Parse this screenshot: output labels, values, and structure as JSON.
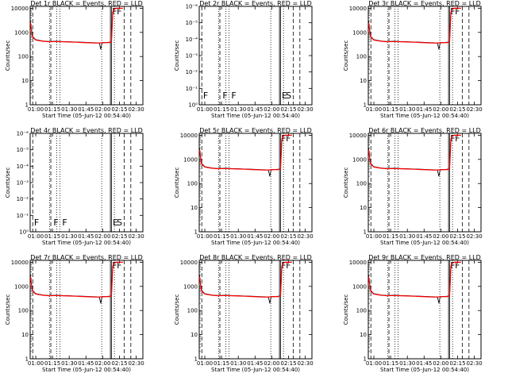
{
  "time_ticks": [
    "01:00",
    "01:15",
    "01:30",
    "01:45",
    "02:00",
    "02:15",
    "02:30"
  ],
  "tick_hours": [
    1.0,
    1.25,
    1.5,
    1.75,
    2.0,
    2.25,
    2.5
  ],
  "xrange_hours": [
    0.9167,
    2.6
  ],
  "ylabel": "Counts/sec",
  "xlabel": "Start Time (05-Jun-12 00:54:40)",
  "colors": {
    "events": "#000000",
    "lld": "#ff0000"
  },
  "y_ticks_normal": [
    "1",
    "10",
    "100",
    "1000",
    "10000"
  ],
  "y_ticks_empty": [
    "10⁰",
    "10⁻¹",
    "10⁻²",
    "10⁻³",
    "10⁻⁴",
    "10⁻⁵",
    "10⁻⁶"
  ],
  "chart_data": [
    {
      "type": "line",
      "title": "Det 1r BLACK = Events, RED = LLD",
      "empty": false,
      "letters": [
        "F",
        "F"
      ],
      "solid_lines": [
        2.115,
        2.13
      ],
      "dashed_lines": [
        0.955,
        1.225,
        2.32,
        2.42
      ],
      "dotted_lines": [
        1.205,
        1.315,
        1.36,
        1.985,
        2.175
      ],
      "ylim": [
        1,
        12000
      ],
      "ylog": true,
      "series": [
        {
          "name": "Events",
          "x": [
            0.92,
            0.935,
            0.95,
            1.0,
            1.1,
            1.2,
            1.3,
            1.4,
            1.5,
            1.6,
            1.7,
            1.8,
            1.9,
            1.95,
            1.97,
            1.99,
            2.0,
            2.05,
            2.1,
            2.13,
            2.15,
            2.17,
            2.2,
            2.3
          ],
          "values": [
            3000,
            1500,
            700,
            500,
            440,
            420,
            430,
            420,
            410,
            400,
            390,
            380,
            370,
            360,
            200,
            360,
            380,
            380,
            390,
            400,
            7000,
            9000,
            10000,
            10000
          ]
        },
        {
          "name": "LLD",
          "x": [
            0.92,
            0.935,
            0.95,
            1.0,
            1.1,
            1.2,
            1.3,
            1.4,
            1.5,
            1.6,
            1.7,
            1.8,
            1.9,
            2.0,
            2.1,
            2.13,
            2.15,
            2.17,
            2.2,
            2.3
          ],
          "values": [
            2500,
            1300,
            650,
            480,
            430,
            410,
            420,
            410,
            400,
            390,
            380,
            370,
            360,
            370,
            380,
            400,
            6000,
            9000,
            10000,
            10000
          ]
        }
      ]
    },
    {
      "type": "line",
      "title": "Det 2r BLACK = Events, RED = LLD",
      "empty": true,
      "letters": [
        "F",
        "F",
        "F",
        "E",
        "S"
      ],
      "solid_lines": [
        2.115,
        2.13
      ],
      "dashed_lines": [
        0.955,
        1.225,
        2.32,
        2.42
      ],
      "dotted_lines": [
        1.205,
        1.315,
        1.36,
        1.985,
        2.175
      ],
      "ylim": [
        1,
        1e-06
      ],
      "ylog": true,
      "series": []
    },
    {
      "type": "line",
      "title": "Det 3r BLACK = Events, RED = LLD",
      "empty": false,
      "letters": [
        "F",
        "F"
      ],
      "solid_lines": [
        2.115,
        2.13
      ],
      "dashed_lines": [
        0.955,
        1.225,
        2.32,
        2.42
      ],
      "dotted_lines": [
        1.205,
        1.315,
        1.36,
        1.985,
        2.175
      ],
      "ylim": [
        1,
        12000
      ],
      "ylog": true,
      "series": [
        {
          "name": "Events",
          "x": [
            0.92,
            0.935,
            0.95,
            1.0,
            1.1,
            1.2,
            1.3,
            1.4,
            1.5,
            1.6,
            1.7,
            1.8,
            1.9,
            1.95,
            1.97,
            1.99,
            2.0,
            2.05,
            2.1,
            2.13,
            2.15,
            2.17,
            2.2,
            2.3
          ],
          "values": [
            3000,
            1500,
            700,
            500,
            440,
            420,
            430,
            420,
            410,
            400,
            390,
            380,
            370,
            360,
            200,
            360,
            380,
            380,
            390,
            400,
            7000,
            9000,
            10000,
            10000
          ]
        },
        {
          "name": "LLD",
          "x": [
            0.92,
            0.935,
            0.95,
            1.0,
            1.1,
            1.2,
            1.3,
            1.4,
            1.5,
            1.6,
            1.7,
            1.8,
            1.9,
            2.0,
            2.1,
            2.13,
            2.15,
            2.17,
            2.2,
            2.3
          ],
          "values": [
            2500,
            1300,
            650,
            480,
            430,
            410,
            420,
            410,
            400,
            390,
            380,
            370,
            360,
            370,
            380,
            400,
            6000,
            9000,
            10000,
            10000
          ]
        }
      ]
    },
    {
      "type": "line",
      "title": "Det 4r BLACK = Events, RED = LLD",
      "empty": true,
      "letters": [
        "F",
        "F",
        "F",
        "E",
        "S"
      ],
      "solid_lines": [
        2.115,
        2.13
      ],
      "dashed_lines": [
        0.955,
        1.225,
        2.32,
        2.42
      ],
      "dotted_lines": [
        1.205,
        1.315,
        1.36,
        1.985,
        2.175
      ],
      "ylim": [
        1,
        1e-06
      ],
      "ylog": true,
      "series": []
    },
    {
      "type": "line",
      "title": "Det 5r BLACK = Events, RED = LLD",
      "empty": false,
      "letters": [
        "F",
        "F"
      ],
      "solid_lines": [
        2.115,
        2.13
      ],
      "dashed_lines": [
        0.955,
        1.225,
        2.32,
        2.42
      ],
      "dotted_lines": [
        1.205,
        1.315,
        1.36,
        1.985,
        2.175
      ],
      "ylim": [
        1,
        12000
      ],
      "ylog": true,
      "series": [
        {
          "name": "Events",
          "x": [
            0.92,
            0.935,
            0.95,
            1.0,
            1.1,
            1.2,
            1.3,
            1.4,
            1.5,
            1.6,
            1.7,
            1.8,
            1.9,
            1.95,
            1.97,
            1.99,
            2.0,
            2.05,
            2.1,
            2.13,
            2.15,
            2.17,
            2.2,
            2.3
          ],
          "values": [
            3000,
            1500,
            700,
            500,
            440,
            420,
            430,
            420,
            410,
            400,
            390,
            380,
            370,
            360,
            200,
            360,
            380,
            380,
            390,
            400,
            7000,
            9000,
            10000,
            10000
          ]
        },
        {
          "name": "LLD",
          "x": [
            0.92,
            0.935,
            0.95,
            1.0,
            1.1,
            1.2,
            1.3,
            1.4,
            1.5,
            1.6,
            1.7,
            1.8,
            1.9,
            2.0,
            2.1,
            2.13,
            2.15,
            2.17,
            2.2,
            2.3
          ],
          "values": [
            2500,
            1300,
            650,
            480,
            430,
            410,
            420,
            410,
            400,
            390,
            380,
            370,
            360,
            370,
            380,
            400,
            6000,
            9000,
            10000,
            10000
          ]
        }
      ]
    },
    {
      "type": "line",
      "title": "Det 6r BLACK = Events, RED = LLD",
      "empty": false,
      "letters": [
        "F",
        "F"
      ],
      "solid_lines": [
        2.115,
        2.13
      ],
      "dashed_lines": [
        0.955,
        1.225,
        2.32,
        2.42
      ],
      "dotted_lines": [
        1.205,
        1.315,
        1.36,
        1.985,
        2.175
      ],
      "ylim": [
        1,
        12000
      ],
      "ylog": true,
      "series": [
        {
          "name": "Events",
          "x": [
            0.92,
            0.935,
            0.95,
            1.0,
            1.1,
            1.2,
            1.3,
            1.4,
            1.5,
            1.6,
            1.7,
            1.8,
            1.9,
            1.95,
            1.97,
            1.99,
            2.0,
            2.05,
            2.1,
            2.13,
            2.15,
            2.17,
            2.2,
            2.3
          ],
          "values": [
            3000,
            1500,
            700,
            500,
            440,
            420,
            430,
            420,
            410,
            400,
            390,
            380,
            370,
            360,
            200,
            360,
            380,
            380,
            390,
            400,
            7000,
            9000,
            10000,
            10000
          ]
        },
        {
          "name": "LLD",
          "x": [
            0.92,
            0.935,
            0.95,
            1.0,
            1.1,
            1.2,
            1.3,
            1.4,
            1.5,
            1.6,
            1.7,
            1.8,
            1.9,
            2.0,
            2.1,
            2.13,
            2.15,
            2.17,
            2.2,
            2.3
          ],
          "values": [
            2500,
            1300,
            650,
            480,
            430,
            410,
            420,
            410,
            400,
            390,
            380,
            370,
            360,
            370,
            380,
            400,
            6000,
            9000,
            10000,
            10000
          ]
        }
      ]
    },
    {
      "type": "line",
      "title": "Det 7r BLACK = Events, RED = LLD",
      "empty": false,
      "letters": [
        "F",
        "F"
      ],
      "solid_lines": [
        2.115,
        2.13
      ],
      "dashed_lines": [
        0.955,
        1.225,
        2.32,
        2.42
      ],
      "dotted_lines": [
        1.205,
        1.315,
        1.36,
        1.985,
        2.175
      ],
      "ylim": [
        1,
        12000
      ],
      "ylog": true,
      "series": [
        {
          "name": "Events",
          "x": [
            0.92,
            0.935,
            0.95,
            1.0,
            1.1,
            1.2,
            1.3,
            1.4,
            1.5,
            1.6,
            1.7,
            1.8,
            1.9,
            1.95,
            1.97,
            1.99,
            2.0,
            2.05,
            2.1,
            2.13,
            2.15,
            2.17,
            2.2,
            2.3
          ],
          "values": [
            3000,
            1500,
            700,
            500,
            440,
            420,
            430,
            420,
            410,
            400,
            390,
            380,
            370,
            360,
            200,
            360,
            380,
            380,
            390,
            400,
            7000,
            9000,
            10000,
            10000
          ]
        },
        {
          "name": "LLD",
          "x": [
            0.92,
            0.935,
            0.95,
            1.0,
            1.1,
            1.2,
            1.3,
            1.4,
            1.5,
            1.6,
            1.7,
            1.8,
            1.9,
            2.0,
            2.1,
            2.13,
            2.15,
            2.17,
            2.2,
            2.3
          ],
          "values": [
            2500,
            1300,
            650,
            480,
            430,
            410,
            420,
            410,
            400,
            390,
            380,
            370,
            360,
            370,
            380,
            400,
            6000,
            9000,
            10000,
            10000
          ]
        }
      ]
    },
    {
      "type": "line",
      "title": "Det 8r BLACK = Events, RED = LLD",
      "empty": false,
      "letters": [
        "F",
        "F"
      ],
      "solid_lines": [
        2.115,
        2.13
      ],
      "dashed_lines": [
        0.955,
        1.225,
        2.32,
        2.42
      ],
      "dotted_lines": [
        1.205,
        1.315,
        1.36,
        1.985,
        2.175
      ],
      "ylim": [
        1,
        12000
      ],
      "ylog": true,
      "series": [
        {
          "name": "Events",
          "x": [
            0.92,
            0.935,
            0.95,
            1.0,
            1.1,
            1.2,
            1.3,
            1.4,
            1.5,
            1.6,
            1.7,
            1.8,
            1.9,
            1.95,
            1.97,
            1.99,
            2.0,
            2.05,
            2.1,
            2.13,
            2.15,
            2.17,
            2.2,
            2.3
          ],
          "values": [
            3000,
            1500,
            700,
            500,
            440,
            420,
            430,
            420,
            410,
            400,
            390,
            380,
            370,
            360,
            200,
            360,
            380,
            380,
            390,
            400,
            7000,
            9000,
            10000,
            10000
          ]
        },
        {
          "name": "LLD",
          "x": [
            0.92,
            0.935,
            0.95,
            1.0,
            1.1,
            1.2,
            1.3,
            1.4,
            1.5,
            1.6,
            1.7,
            1.8,
            1.9,
            2.0,
            2.1,
            2.13,
            2.15,
            2.17,
            2.2,
            2.3
          ],
          "values": [
            2500,
            1300,
            650,
            480,
            430,
            410,
            420,
            410,
            400,
            390,
            380,
            370,
            360,
            370,
            380,
            400,
            6000,
            9000,
            10000,
            10000
          ]
        }
      ]
    },
    {
      "type": "line",
      "title": "Det 9r BLACK = Events, RED = LLD",
      "empty": false,
      "letters": [
        "F",
        "F"
      ],
      "solid_lines": [
        2.115,
        2.13
      ],
      "dashed_lines": [
        0.955,
        1.225,
        2.32,
        2.42
      ],
      "dotted_lines": [
        1.205,
        1.315,
        1.36,
        1.985,
        2.175
      ],
      "ylim": [
        1,
        12000
      ],
      "ylog": true,
      "series": [
        {
          "name": "Events",
          "x": [
            0.92,
            0.935,
            0.95,
            1.0,
            1.1,
            1.2,
            1.3,
            1.4,
            1.5,
            1.6,
            1.7,
            1.8,
            1.9,
            1.95,
            1.97,
            1.99,
            2.0,
            2.05,
            2.1,
            2.13,
            2.15,
            2.17,
            2.2,
            2.3
          ],
          "values": [
            3000,
            1500,
            700,
            500,
            440,
            420,
            430,
            420,
            410,
            400,
            390,
            380,
            370,
            360,
            200,
            360,
            380,
            380,
            390,
            400,
            7000,
            9000,
            10000,
            10000
          ]
        },
        {
          "name": "LLD",
          "x": [
            0.92,
            0.935,
            0.95,
            1.0,
            1.1,
            1.2,
            1.3,
            1.4,
            1.5,
            1.6,
            1.7,
            1.8,
            1.9,
            2.0,
            2.1,
            2.13,
            2.15,
            2.17,
            2.2,
            2.3
          ],
          "values": [
            2500,
            1300,
            650,
            480,
            430,
            410,
            420,
            410,
            400,
            390,
            380,
            370,
            360,
            370,
            380,
            400,
            6000,
            9000,
            10000,
            10000
          ]
        }
      ]
    }
  ]
}
